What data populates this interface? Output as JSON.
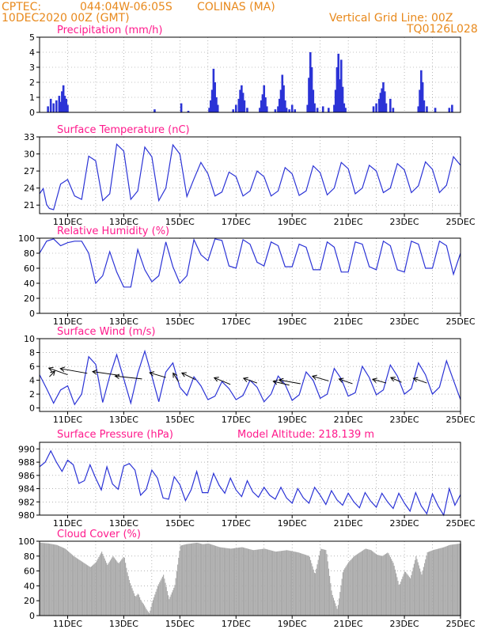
{
  "header": {
    "source": "CPTEC:",
    "coords": "044:04W-06:05S",
    "station": "COLINAS (MA)",
    "date": "10DEC2020 00Z (GMT)",
    "grid_line": "Vertical Grid Line: 00Z",
    "code": "TQ0126L028"
  },
  "colors": {
    "header": "#e8891c",
    "title": "#ff1a8c",
    "series": "#2b33d6",
    "cloud": "#aaaaaa",
    "arrows": "#000000",
    "grid": "#888888"
  },
  "x_ticks": [
    "11DEC",
    "13DEC",
    "15DEC",
    "17DEC",
    "19DEC",
    "21DEC",
    "23DEC",
    "25DEC"
  ],
  "chart_data": [
    {
      "type": "bar",
      "title": "Precipitation (mm/h)",
      "ylim": [
        0,
        5
      ],
      "yticks": [
        0,
        1,
        2,
        3,
        4,
        5
      ],
      "x_range_days": [
        10,
        25
      ],
      "grid": true,
      "bars": [
        [
          10.3,
          0.4
        ],
        [
          10.4,
          0.9
        ],
        [
          10.5,
          0.6
        ],
        [
          10.6,
          0.8
        ],
        [
          10.7,
          1.1
        ],
        [
          10.75,
          0.7
        ],
        [
          10.8,
          1.4
        ],
        [
          10.85,
          1.8
        ],
        [
          10.9,
          1.1
        ],
        [
          10.95,
          0.9
        ],
        [
          11.0,
          0.5
        ],
        [
          14.1,
          0.2
        ],
        [
          15.05,
          0.6
        ],
        [
          15.3,
          0.1
        ],
        [
          16.05,
          0.3
        ],
        [
          16.1,
          0.8
        ],
        [
          16.15,
          1.5
        ],
        [
          16.2,
          2.9
        ],
        [
          16.25,
          2.0
        ],
        [
          16.3,
          1.0
        ],
        [
          16.35,
          0.5
        ],
        [
          16.9,
          0.2
        ],
        [
          17.0,
          0.5
        ],
        [
          17.1,
          0.9
        ],
        [
          17.15,
          1.5
        ],
        [
          17.2,
          1.8
        ],
        [
          17.25,
          1.3
        ],
        [
          17.3,
          0.8
        ],
        [
          17.4,
          0.3
        ],
        [
          17.85,
          0.3
        ],
        [
          17.9,
          0.8
        ],
        [
          17.95,
          1.2
        ],
        [
          18.0,
          1.8
        ],
        [
          18.05,
          1.0
        ],
        [
          18.1,
          0.4
        ],
        [
          18.4,
          0.2
        ],
        [
          18.5,
          0.4
        ],
        [
          18.55,
          0.9
        ],
        [
          18.6,
          1.5
        ],
        [
          18.65,
          2.5
        ],
        [
          18.7,
          1.8
        ],
        [
          18.75,
          0.8
        ],
        [
          18.8,
          0.3
        ],
        [
          18.9,
          0.2
        ],
        [
          19.0,
          0.5
        ],
        [
          19.1,
          0.2
        ],
        [
          19.55,
          0.5
        ],
        [
          19.6,
          2.3
        ],
        [
          19.65,
          4.0
        ],
        [
          19.7,
          3.0
        ],
        [
          19.75,
          1.5
        ],
        [
          19.8,
          0.6
        ],
        [
          19.9,
          0.3
        ],
        [
          20.1,
          0.4
        ],
        [
          20.3,
          0.3
        ],
        [
          20.5,
          0.5
        ],
        [
          20.55,
          1.5
        ],
        [
          20.6,
          3.0
        ],
        [
          20.65,
          3.9
        ],
        [
          20.7,
          2.2
        ],
        [
          20.75,
          3.5
        ],
        [
          20.8,
          1.7
        ],
        [
          20.85,
          0.6
        ],
        [
          20.9,
          0.3
        ],
        [
          21.9,
          0.4
        ],
        [
          22.0,
          0.6
        ],
        [
          22.1,
          0.9
        ],
        [
          22.15,
          1.3
        ],
        [
          22.2,
          1.6
        ],
        [
          22.25,
          2.0
        ],
        [
          22.3,
          1.4
        ],
        [
          22.35,
          0.6
        ],
        [
          22.5,
          0.9
        ],
        [
          22.6,
          0.3
        ],
        [
          23.5,
          0.4
        ],
        [
          23.55,
          1.5
        ],
        [
          23.6,
          2.8
        ],
        [
          23.65,
          2.0
        ],
        [
          23.7,
          0.8
        ],
        [
          23.8,
          0.4
        ],
        [
          24.1,
          0.3
        ],
        [
          24.6,
          0.3
        ],
        [
          24.7,
          0.5
        ]
      ]
    },
    {
      "type": "line",
      "title": "Surface Temperature (nC)",
      "ylim": [
        19.5,
        33
      ],
      "yticks": [
        21,
        24,
        27,
        30,
        33
      ],
      "x_range_days": [
        10,
        25
      ],
      "grid": true,
      "x": [
        10.0,
        10.13,
        10.25,
        10.35,
        10.5,
        10.75,
        11.0,
        11.25,
        11.5,
        11.75,
        12.0,
        12.25,
        12.5,
        12.75,
        13.0,
        13.25,
        13.5,
        13.75,
        14.0,
        14.25,
        14.5,
        14.75,
        15.0,
        15.25,
        15.5,
        15.75,
        16.0,
        16.25,
        16.5,
        16.75,
        17.0,
        17.25,
        17.5,
        17.75,
        18.0,
        18.25,
        18.5,
        18.75,
        19.0,
        19.25,
        19.5,
        19.75,
        20.0,
        20.25,
        20.5,
        20.75,
        21.0,
        21.25,
        21.5,
        21.75,
        22.0,
        22.25,
        22.5,
        22.75,
        23.0,
        23.25,
        23.5,
        23.75,
        24.0,
        24.25,
        24.5,
        24.75,
        25.0
      ],
      "values": [
        23,
        23.9,
        21.1,
        20.4,
        20.2,
        24.7,
        25.5,
        22.6,
        22.0,
        29.6,
        28.8,
        21.8,
        23.0,
        31.7,
        30.5,
        22.0,
        23.5,
        31.2,
        29.5,
        21.8,
        24.0,
        31.6,
        30.0,
        22.5,
        25.6,
        28.5,
        26.5,
        22.6,
        23.3,
        26.8,
        26.0,
        22.6,
        23.5,
        27.0,
        26.0,
        22.6,
        23.5,
        27.6,
        26.5,
        22.7,
        23.5,
        27.9,
        26.7,
        22.8,
        24.0,
        28.5,
        27.4,
        23.0,
        24.0,
        28.0,
        27.0,
        23.2,
        24.0,
        28.3,
        27.2,
        23.2,
        24.4,
        28.6,
        27.3,
        23.2,
        24.5,
        29.5,
        28.0
      ]
    },
    {
      "type": "line",
      "title": "Relative Humidity (%)",
      "ylim": [
        0,
        100
      ],
      "yticks": [
        0,
        20,
        40,
        60,
        80,
        100
      ],
      "x_range_days": [
        10,
        25
      ],
      "grid": true,
      "x": [
        10.0,
        10.25,
        10.5,
        10.75,
        11.0,
        11.25,
        11.5,
        11.75,
        12.0,
        12.25,
        12.5,
        12.75,
        13.0,
        13.25,
        13.5,
        13.75,
        14.0,
        14.25,
        14.5,
        14.75,
        15.0,
        15.25,
        15.5,
        15.75,
        16.0,
        16.25,
        16.5,
        16.75,
        17.0,
        17.25,
        17.5,
        17.75,
        18.0,
        18.25,
        18.5,
        18.75,
        19.0,
        19.25,
        19.5,
        19.75,
        20.0,
        20.25,
        20.5,
        20.75,
        21.0,
        21.25,
        21.5,
        21.75,
        22.0,
        22.25,
        22.5,
        22.75,
        23.0,
        23.25,
        23.5,
        23.75,
        24.0,
        24.25,
        24.5,
        24.75,
        25.0
      ],
      "values": [
        80,
        96,
        99,
        90,
        94,
        96,
        96,
        80,
        40,
        50,
        82,
        55,
        35,
        35,
        85,
        58,
        42,
        50,
        95,
        62,
        40,
        50,
        98,
        78,
        70,
        99,
        97,
        63,
        60,
        98,
        92,
        68,
        63,
        95,
        90,
        62,
        62,
        92,
        88,
        58,
        58,
        95,
        88,
        55,
        55,
        95,
        92,
        62,
        58,
        96,
        90,
        58,
        55,
        96,
        92,
        60,
        60,
        96,
        90,
        52,
        80
      ]
    },
    {
      "type": "line",
      "title": "Surface Wind (m/s)",
      "ylim": [
        -0.5,
        10
      ],
      "yticks": [
        0,
        2,
        4,
        6,
        8,
        10
      ],
      "x_range_days": [
        10,
        25
      ],
      "grid": true,
      "x": [
        10.0,
        10.25,
        10.5,
        10.75,
        11.0,
        11.25,
        11.5,
        11.75,
        12.0,
        12.25,
        12.5,
        12.75,
        13.0,
        13.25,
        13.5,
        13.75,
        14.0,
        14.25,
        14.5,
        14.75,
        15.0,
        15.25,
        15.5,
        15.75,
        16.0,
        16.25,
        16.5,
        16.75,
        17.0,
        17.25,
        17.5,
        17.75,
        18.0,
        18.25,
        18.5,
        18.75,
        19.0,
        19.25,
        19.5,
        19.75,
        20.0,
        20.25,
        20.5,
        20.75,
        21.0,
        21.25,
        21.5,
        21.75,
        22.0,
        22.25,
        22.5,
        22.75,
        23.0,
        23.25,
        23.5,
        23.75,
        24.0,
        24.25,
        24.5,
        24.75,
        25.0
      ],
      "values": [
        4.8,
        2.8,
        0.7,
        2.6,
        3.2,
        0.5,
        2.0,
        7.4,
        6.3,
        0.8,
        4.6,
        7.7,
        4.2,
        0.7,
        5.0,
        8.2,
        4.6,
        0.9,
        5.2,
        6.5,
        3.0,
        1.8,
        4.5,
        3.2,
        1.2,
        1.7,
        3.8,
        2.8,
        1.2,
        1.8,
        4.0,
        3.0,
        0.9,
        2.0,
        4.6,
        3.4,
        1.1,
        1.9,
        5.2,
        4.0,
        1.4,
        2.0,
        5.7,
        4.2,
        1.7,
        2.2,
        6.0,
        4.4,
        1.9,
        2.6,
        6.2,
        4.6,
        2.0,
        2.8,
        6.5,
        4.8,
        2.0,
        3.0,
        6.8,
        4.0,
        1.2
      ],
      "vectors": [
        [
          10.35,
          4.5,
          0.2,
          0.6
        ],
        [
          11.0,
          4.8,
          -0.7,
          0.7
        ],
        [
          11.7,
          5.0,
          -1.0,
          0.5
        ],
        [
          12.85,
          4.7,
          -1.0,
          0.4
        ],
        [
          13.65,
          4.2,
          -1.0,
          0.3
        ],
        [
          14.5,
          4.4,
          -0.6,
          0.5
        ],
        [
          14.95,
          3.8,
          -0.2,
          0.9
        ],
        [
          15.55,
          4.1,
          -0.5,
          0.7
        ],
        [
          16.8,
          3.4,
          -0.6,
          0.7
        ],
        [
          17.75,
          3.6,
          -0.5,
          0.5
        ],
        [
          18.9,
          3.3,
          -0.6,
          0.4
        ],
        [
          19.3,
          3.5,
          -0.8,
          0.4
        ],
        [
          20.3,
          3.9,
          -0.6,
          0.5
        ],
        [
          21.15,
          3.5,
          -0.5,
          0.5
        ],
        [
          22.35,
          3.6,
          -0.5,
          0.4
        ],
        [
          22.9,
          3.7,
          -0.4,
          0.5
        ],
        [
          23.8,
          3.6,
          -0.5,
          0.5
        ]
      ]
    },
    {
      "type": "line",
      "title": "Surface Pressure (hPa)",
      "annotation": "Model Altitude: 218.139 m",
      "ylim": [
        980,
        991
      ],
      "yticks": [
        980,
        982,
        984,
        986,
        988,
        990
      ],
      "x_range_days": [
        10,
        25
      ],
      "grid": true,
      "x": [
        10.0,
        10.2,
        10.4,
        10.6,
        10.8,
        11.0,
        11.2,
        11.4,
        11.6,
        11.8,
        12.0,
        12.2,
        12.4,
        12.6,
        12.8,
        13.0,
        13.2,
        13.4,
        13.6,
        13.8,
        14.0,
        14.2,
        14.4,
        14.6,
        14.8,
        15.0,
        15.2,
        15.4,
        15.6,
        15.8,
        16.0,
        16.2,
        16.4,
        16.6,
        16.8,
        17.0,
        17.2,
        17.4,
        17.6,
        17.8,
        18.0,
        18.2,
        18.4,
        18.6,
        18.8,
        19.0,
        19.2,
        19.4,
        19.6,
        19.8,
        20.0,
        20.2,
        20.4,
        20.6,
        20.8,
        21.0,
        21.2,
        21.4,
        21.6,
        21.8,
        22.0,
        22.2,
        22.4,
        22.6,
        22.8,
        23.0,
        23.2,
        23.4,
        23.6,
        23.8,
        24.0,
        24.2,
        24.4,
        24.6,
        24.8,
        25.0
      ],
      "values": [
        987.3,
        988.0,
        989.7,
        988.0,
        986.6,
        988.3,
        987.6,
        984.8,
        985.2,
        987.6,
        985.6,
        983.8,
        987.3,
        984.7,
        983.9,
        987.4,
        987.8,
        986.8,
        983.0,
        983.9,
        986.8,
        985.6,
        982.6,
        982.4,
        985.8,
        984.6,
        982.2,
        983.8,
        986.6,
        983.4,
        983.4,
        986.3,
        984.5,
        983.3,
        985.6,
        983.8,
        982.8,
        985.2,
        983.5,
        982.7,
        984.2,
        983.0,
        982.4,
        984.2,
        982.6,
        981.8,
        984.0,
        982.6,
        981.8,
        984.2,
        983.0,
        981.6,
        983.7,
        982.3,
        981.5,
        983.3,
        982.0,
        981.1,
        983.4,
        982.1,
        981.2,
        983.3,
        982.0,
        981.0,
        983.3,
        981.8,
        980.6,
        983.4,
        981.4,
        980.2,
        983.2,
        981.4,
        980.0,
        984.0,
        981.5,
        983.1
      ]
    },
    {
      "type": "bar",
      "title": "Cloud Cover (%)",
      "ylim": [
        0,
        100
      ],
      "yticks": [
        0,
        20,
        40,
        60,
        80,
        100
      ],
      "x_range_days": [
        10,
        25
      ],
      "grid": true,
      "x": [
        10.0,
        10.3,
        10.6,
        10.9,
        11.2,
        11.4,
        11.6,
        11.8,
        12.0,
        12.2,
        12.4,
        12.6,
        12.8,
        13.0,
        13.1,
        13.2,
        13.3,
        13.4,
        13.5,
        13.6,
        13.7,
        13.8,
        13.9,
        14.0,
        14.2,
        14.4,
        14.6,
        14.8,
        15.0,
        15.2,
        15.4,
        15.6,
        15.8,
        16.0,
        16.4,
        16.8,
        17.2,
        17.6,
        18.0,
        18.4,
        18.8,
        19.2,
        19.6,
        19.8,
        20.0,
        20.2,
        20.4,
        20.6,
        20.8,
        21.0,
        21.2,
        21.4,
        21.6,
        21.8,
        22.0,
        22.2,
        22.4,
        22.6,
        22.8,
        23.0,
        23.2,
        23.4,
        23.6,
        23.8,
        24.0,
        24.2,
        24.4,
        24.6,
        24.8,
        25.0
      ],
      "values": [
        98,
        97,
        95,
        90,
        80,
        75,
        70,
        65,
        72,
        86,
        68,
        80,
        70,
        80,
        60,
        45,
        35,
        25,
        30,
        20,
        15,
        8,
        3,
        18,
        40,
        55,
        22,
        40,
        94,
        96,
        97,
        98,
        96,
        97,
        92,
        90,
        92,
        88,
        90,
        86,
        88,
        85,
        80,
        55,
        90,
        88,
        30,
        8,
        60,
        72,
        80,
        85,
        90,
        88,
        82,
        80,
        85,
        70,
        40,
        60,
        50,
        80,
        55,
        85,
        88,
        90,
        92,
        95,
        96,
        97
      ]
    }
  ],
  "panels": [
    {
      "title": "Precipitation (mm/h)",
      "show_xticks": false
    },
    {
      "title": "Surface Temperature (nC)",
      "show_xticks": true
    },
    {
      "title": "Relative Humidity (%)",
      "show_xticks": true
    },
    {
      "title": "Surface Wind (m/s)",
      "show_xticks": true
    },
    {
      "title": "Surface Pressure (hPa)",
      "show_xticks": true
    },
    {
      "title": "Cloud Cover (%)",
      "show_xticks": true
    }
  ]
}
